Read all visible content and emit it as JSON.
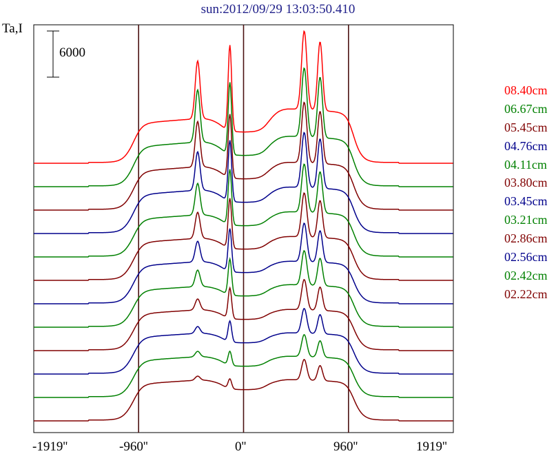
{
  "chart_data": {
    "type": "line",
    "title": "sun:2012/09/29 13:03:50.410",
    "ylabel": "Ta,I",
    "scale_bar_label": "6000",
    "x_ticks": [
      "-1919''",
      "-960''",
      "0''",
      "960''",
      "1919''"
    ],
    "x_tick_values": [
      -1919,
      -960,
      0,
      960,
      1919
    ],
    "xlim": [
      -1919,
      1919
    ],
    "vertical_reference_lines": [
      -960,
      0,
      960
    ],
    "series": [
      {
        "name": "08.40cm",
        "color": "#ff0000",
        "baseline": 0,
        "limb": 0.14,
        "left_shoulder": 0.33,
        "peak_minus300": 0.42,
        "peak_minus100": 0.62,
        "center_plateau": 0.22,
        "peak_550": 0.57,
        "peak_700": 0.5,
        "right_shoulder": 0.4
      },
      {
        "name": "06.67cm",
        "color": "#008000",
        "baseline": 0,
        "limb": 0.14,
        "left_shoulder": 0.33,
        "peak_minus300": 0.38,
        "peak_minus100": 0.52,
        "center_plateau": 0.22,
        "peak_550": 0.5,
        "peak_700": 0.44,
        "right_shoulder": 0.37
      },
      {
        "name": "05.45cm",
        "color": "#800000",
        "baseline": 0,
        "limb": 0.14,
        "left_shoulder": 0.32,
        "peak_minus300": 0.33,
        "peak_minus100": 0.46,
        "center_plateau": 0.22,
        "peak_550": 0.44,
        "peak_700": 0.38,
        "right_shoulder": 0.35
      },
      {
        "name": "04.76cm",
        "color": "#00008b",
        "baseline": 0,
        "limb": 0.14,
        "left_shoulder": 0.32,
        "peak_minus300": 0.28,
        "peak_minus100": 0.44,
        "center_plateau": 0.22,
        "peak_550": 0.4,
        "peak_700": 0.36,
        "right_shoulder": 0.34
      },
      {
        "name": "04.11cm",
        "color": "#008000",
        "baseline": 0,
        "limb": 0.14,
        "left_shoulder": 0.31,
        "peak_minus300": 0.23,
        "peak_minus100": 0.4,
        "center_plateau": 0.22,
        "peak_550": 0.35,
        "peak_700": 0.3,
        "right_shoulder": 0.33
      },
      {
        "name": "03.80cm",
        "color": "#800000",
        "baseline": 0,
        "limb": 0.14,
        "left_shoulder": 0.31,
        "peak_minus300": 0.19,
        "peak_minus100": 0.36,
        "center_plateau": 0.22,
        "peak_550": 0.32,
        "peak_700": 0.27,
        "right_shoulder": 0.32
      },
      {
        "name": "03.45cm",
        "color": "#00008b",
        "baseline": 0,
        "limb": 0.14,
        "left_shoulder": 0.31,
        "peak_minus300": 0.15,
        "peak_minus100": 0.31,
        "center_plateau": 0.22,
        "peak_550": 0.28,
        "peak_700": 0.23,
        "right_shoulder": 0.31
      },
      {
        "name": "03.21cm",
        "color": "#008000",
        "baseline": 0,
        "limb": 0.14,
        "left_shoulder": 0.3,
        "peak_minus300": 0.12,
        "peak_minus100": 0.26,
        "center_plateau": 0.22,
        "peak_550": 0.25,
        "peak_700": 0.2,
        "right_shoulder": 0.31
      },
      {
        "name": "02.86cm",
        "color": "#800000",
        "baseline": 0,
        "limb": 0.14,
        "left_shoulder": 0.3,
        "peak_minus300": 0.08,
        "peak_minus100": 0.22,
        "center_plateau": 0.22,
        "peak_550": 0.22,
        "peak_700": 0.17,
        "right_shoulder": 0.3
      },
      {
        "name": "02.56cm",
        "color": "#00008b",
        "baseline": 0,
        "limb": 0.14,
        "left_shoulder": 0.3,
        "peak_minus300": 0.05,
        "peak_minus100": 0.15,
        "center_plateau": 0.22,
        "peak_550": 0.18,
        "peak_700": 0.14,
        "right_shoulder": 0.3
      },
      {
        "name": "02.42cm",
        "color": "#008000",
        "baseline": 0,
        "limb": 0.14,
        "left_shoulder": 0.3,
        "peak_minus300": 0.04,
        "peak_minus100": 0.1,
        "center_plateau": 0.22,
        "peak_550": 0.16,
        "peak_700": 0.12,
        "right_shoulder": 0.3
      },
      {
        "name": "02.22cm",
        "color": "#800000",
        "baseline": 0,
        "limb": 0.14,
        "left_shoulder": 0.3,
        "peak_minus300": 0.03,
        "peak_minus100": 0.07,
        "center_plateau": 0.22,
        "peak_550": 0.15,
        "peak_700": 0.11,
        "right_shoulder": 0.3
      }
    ]
  }
}
